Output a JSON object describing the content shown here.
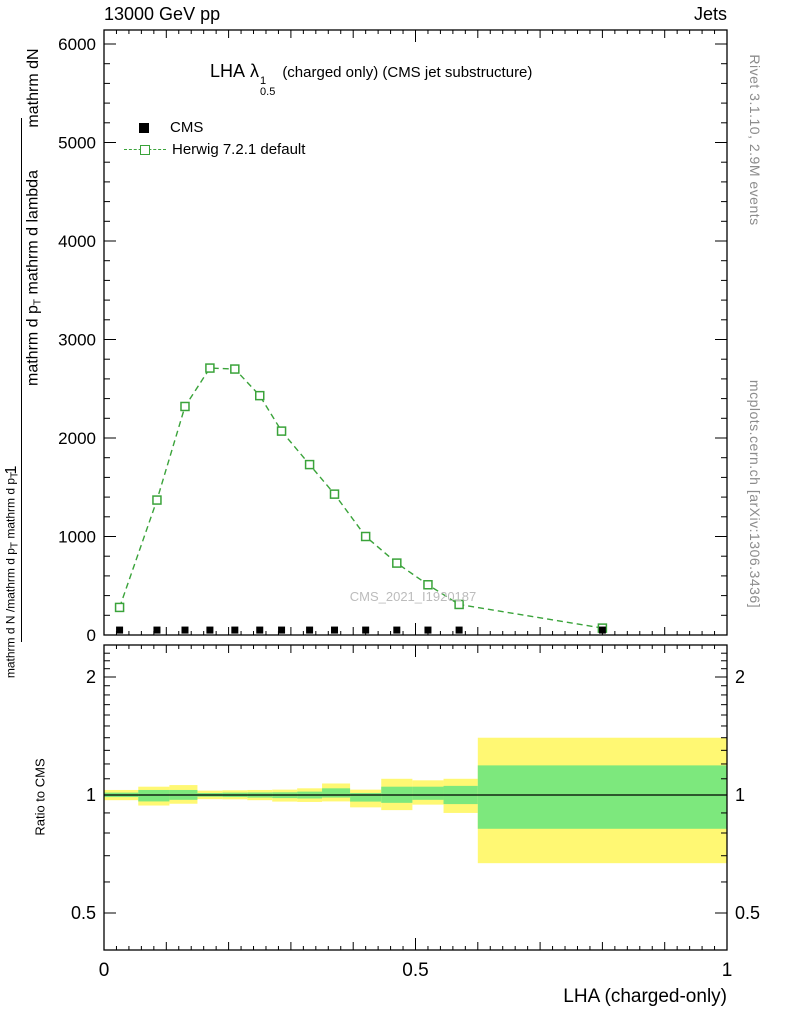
{
  "header": {
    "left": "13000 GeV pp",
    "right": "Jets"
  },
  "title": {
    "prefix": "LHA",
    "lambda": "λ",
    "sup": "1",
    "sub": "0.5",
    "suffix": "(charged only) (CMS jet substructure)"
  },
  "legend": {
    "items": [
      {
        "label": "CMS",
        "marker": "black-filled-square"
      },
      {
        "label": "Herwig 7.2.1 default",
        "marker": "green-open-square-dashed-line"
      }
    ]
  },
  "watermark": "CMS_2021_I1920187",
  "y_axis_label": {
    "inner_numerator": "mathrm dN",
    "inner_denominator_a": "mathrm d p",
    "inner_denominator_sub_a": "T",
    "inner_denominator_b": " mathrm d lambda",
    "outer_numerator": "1",
    "outer_denominator_a": "mathrm d N /mathrm d p",
    "outer_denominator_sub_a": "T",
    "outer_denominator_b": " mathrm d p",
    "outer_denominator_sub_b": "T"
  },
  "ratio_y_label": "Ratio to CMS",
  "x_axis_label": "LHA (charged-only)",
  "side_notes": {
    "rivet": "Rivet 3.1.10,  2.9M events",
    "mcplots": "mcplots.cern.ch [arXiv:1306.3436]"
  },
  "colors": {
    "herwig_green": "#3aa33a",
    "band_yellow": "#fff873",
    "band_green": "#7de87d",
    "cms_black": "#000000",
    "side_note_gray": "#8c8c8c",
    "watermark_gray": "#bcbcbc"
  },
  "chart_data": [
    {
      "type": "line",
      "panel": "main",
      "title": "LHA λ^1_0.5 (charged only) (CMS jet substructure)",
      "xlabel": "LHA (charged-only)",
      "ylabel": "mathrm dN / mathrm d p_T mathrm d lambda",
      "xlim": [
        0,
        1
      ],
      "ylim": [
        0,
        6140
      ],
      "x_major_ticks": [
        0,
        0.5,
        1
      ],
      "x_tick_labels": [
        "0",
        "0.5",
        "1"
      ],
      "y_major_ticks": [
        0,
        1000,
        2000,
        3000,
        4000,
        5000,
        6000
      ],
      "y_tick_labels": [
        "0",
        "1000",
        "2000",
        "3000",
        "4000",
        "5000",
        "6000"
      ],
      "y_minor_step": 200,
      "series": [
        {
          "name": "CMS",
          "marker": "filled-square",
          "color": "#000000",
          "x": [
            0.025,
            0.085,
            0.13,
            0.17,
            0.21,
            0.25,
            0.285,
            0.33,
            0.37,
            0.42,
            0.47,
            0.52,
            0.57,
            0.8
          ],
          "y": [
            50,
            50,
            50,
            50,
            50,
            50,
            50,
            50,
            50,
            50,
            50,
            50,
            50,
            50
          ]
        },
        {
          "name": "Herwig 7.2.1 default",
          "marker": "open-square",
          "line": "dashed",
          "color": "#3aa33a",
          "x": [
            0.025,
            0.085,
            0.13,
            0.17,
            0.21,
            0.25,
            0.285,
            0.33,
            0.37,
            0.42,
            0.47,
            0.52,
            0.57,
            0.8
          ],
          "y": [
            280,
            1370,
            2320,
            2710,
            2700,
            2430,
            2070,
            1730,
            1430,
            1000,
            730,
            510,
            310,
            70
          ]
        }
      ]
    },
    {
      "type": "ratio-bands",
      "panel": "ratio",
      "ylabel": "Ratio to CMS",
      "yscale": "log",
      "ylim": [
        0.4,
        2.42
      ],
      "y_major_ticks": [
        0.5,
        1,
        2
      ],
      "y_tick_labels": [
        "0.5",
        "1",
        "2"
      ],
      "reference_line": 1.0,
      "bands": [
        {
          "x0": 0.0,
          "x1": 0.055,
          "yellow": [
            0.97,
            1.03
          ],
          "green": [
            0.988,
            1.014
          ]
        },
        {
          "x0": 0.055,
          "x1": 0.105,
          "yellow": [
            0.94,
            1.05
          ],
          "green": [
            0.963,
            1.03
          ]
        },
        {
          "x0": 0.105,
          "x1": 0.15,
          "yellow": [
            0.95,
            1.06
          ],
          "green": [
            0.972,
            1.03
          ]
        },
        {
          "x0": 0.15,
          "x1": 0.19,
          "yellow": [
            0.976,
            1.026
          ],
          "green": [
            0.99,
            1.012
          ]
        },
        {
          "x0": 0.19,
          "x1": 0.23,
          "yellow": [
            0.975,
            1.028
          ],
          "green": [
            0.988,
            1.014
          ]
        },
        {
          "x0": 0.23,
          "x1": 0.27,
          "yellow": [
            0.97,
            1.03
          ],
          "green": [
            0.985,
            1.015
          ]
        },
        {
          "x0": 0.27,
          "x1": 0.31,
          "yellow": [
            0.962,
            1.032
          ],
          "green": [
            0.982,
            1.016
          ]
        },
        {
          "x0": 0.31,
          "x1": 0.35,
          "yellow": [
            0.96,
            1.04
          ],
          "green": [
            0.98,
            1.02
          ]
        },
        {
          "x0": 0.35,
          "x1": 0.395,
          "yellow": [
            0.963,
            1.07
          ],
          "green": [
            0.985,
            1.04
          ]
        },
        {
          "x0": 0.395,
          "x1": 0.445,
          "yellow": [
            0.93,
            1.032
          ],
          "green": [
            0.962,
            1.012
          ]
        },
        {
          "x0": 0.445,
          "x1": 0.495,
          "yellow": [
            0.915,
            1.1
          ],
          "green": [
            0.955,
            1.05
          ]
        },
        {
          "x0": 0.495,
          "x1": 0.545,
          "yellow": [
            0.945,
            1.09
          ],
          "green": [
            0.972,
            1.05
          ]
        },
        {
          "x0": 0.545,
          "x1": 0.6,
          "yellow": [
            0.9,
            1.1
          ],
          "green": [
            0.948,
            1.055
          ]
        },
        {
          "x0": 0.6,
          "x1": 1.0,
          "yellow": [
            0.67,
            1.4
          ],
          "green": [
            0.82,
            1.19
          ]
        }
      ]
    }
  ]
}
